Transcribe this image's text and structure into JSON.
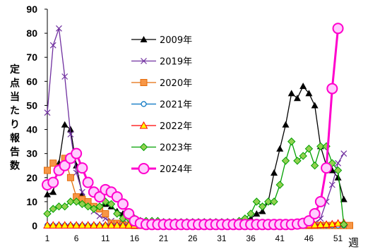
{
  "chart_data": {
    "type": "line",
    "ylabel": "定点当たり報告数",
    "xlabel": "週",
    "ylim": [
      0,
      90
    ],
    "xlim": [
      1,
      53
    ],
    "y_ticks": [
      "0",
      "10",
      "20",
      "30",
      "40",
      "50",
      "60",
      "70",
      "80",
      "90"
    ],
    "y_tick_values": [
      0,
      10,
      20,
      30,
      40,
      50,
      60,
      70,
      80,
      90
    ],
    "x_ticks": [
      "1",
      "6",
      "11",
      "16",
      "21",
      "26",
      "31",
      "36",
      "41",
      "46",
      "51"
    ],
    "x_tick_values": [
      1,
      6,
      11,
      16,
      21,
      26,
      31,
      36,
      41,
      46,
      51
    ],
    "grid": false,
    "legend_position": "center",
    "series": [
      {
        "name": "2009年",
        "color": "#000000",
        "marker": "triangle",
        "x": [
          1,
          2,
          3,
          4,
          5,
          6,
          7,
          8,
          9,
          10,
          11,
          12,
          13,
          14,
          15,
          16,
          17,
          18,
          19,
          20,
          21,
          22,
          23,
          24,
          25,
          26,
          27,
          28,
          29,
          30,
          31,
          32,
          33,
          34,
          35,
          36,
          37,
          38,
          39,
          40,
          41,
          42,
          43,
          44,
          45,
          46,
          47,
          48,
          49,
          50,
          51,
          52
        ],
        "values": [
          13,
          14,
          26,
          42,
          40,
          25,
          13,
          10,
          8,
          8,
          9,
          8,
          6,
          5,
          4,
          3,
          2,
          2,
          1,
          1,
          1,
          1,
          1,
          1,
          1,
          1,
          1,
          1,
          1,
          1,
          1,
          1,
          1,
          1,
          1,
          3,
          5,
          6,
          10,
          22,
          32,
          42,
          55,
          53,
          58,
          55,
          50,
          33,
          25,
          23,
          20,
          11
        ]
      },
      {
        "name": "2019年",
        "color": "#7030a0",
        "marker": "x",
        "x": [
          1,
          2,
          3,
          4,
          5,
          6,
          7,
          8,
          9,
          10,
          11,
          12,
          13,
          14,
          15,
          16,
          17,
          18,
          19,
          20,
          21,
          22,
          23,
          24,
          25,
          26,
          27,
          28,
          29,
          30,
          31,
          32,
          33,
          34,
          35,
          36,
          37,
          38,
          39,
          40,
          41,
          42,
          43,
          44,
          45,
          46,
          47,
          48,
          49,
          50,
          51,
          52
        ],
        "values": [
          47,
          75,
          82,
          62,
          38,
          22,
          14,
          9,
          6,
          4,
          3,
          2,
          1,
          1,
          0.5,
          0.5,
          0.3,
          0.3,
          0.2,
          0.2,
          0.2,
          0.2,
          0.2,
          0.2,
          0.2,
          0.2,
          0.2,
          0.2,
          0.2,
          0.2,
          0.2,
          0.2,
          0.2,
          0.2,
          0.2,
          0.2,
          0.2,
          0.2,
          0.2,
          0.2,
          0.2,
          0.2,
          0.2,
          0.3,
          0.3,
          0.5,
          1,
          3,
          10,
          17,
          26,
          30
        ]
      },
      {
        "name": "2020年",
        "color": "#e46c0a",
        "marker": "square",
        "x": [
          1,
          2,
          3,
          4,
          5,
          6,
          7,
          8,
          9,
          10,
          11,
          12,
          13,
          14,
          15,
          16,
          17,
          18,
          19,
          20,
          21,
          22,
          23,
          24,
          25,
          26,
          27,
          28,
          29,
          30,
          31,
          32,
          33,
          34,
          35,
          36,
          37,
          38,
          39,
          40,
          41,
          42,
          43,
          44,
          45,
          46,
          47,
          48,
          49,
          50,
          51,
          52,
          53
        ],
        "values": [
          23,
          26,
          24,
          28,
          20,
          12,
          11,
          10,
          8,
          7,
          5,
          1,
          1,
          0.3,
          0.2,
          0.1,
          0.1,
          0.1,
          0.1,
          0.1,
          0.1,
          0.1,
          0.1,
          0.1,
          0.1,
          0.1,
          0.1,
          0.1,
          0.1,
          0.1,
          0.1,
          0.1,
          0.1,
          0.1,
          0.1,
          0.1,
          0.1,
          0.1,
          0.1,
          0.1,
          0.1,
          0.1,
          0.1,
          0.1,
          0.1,
          0.1,
          0.1,
          0.1,
          0.1,
          0.1,
          0.1,
          0.1,
          0.1
        ]
      },
      {
        "name": "2021年",
        "color": "#0070c0",
        "marker": "circle",
        "x": [
          1,
          2,
          3,
          4,
          5,
          6,
          7,
          8,
          9,
          10,
          11,
          12,
          13,
          14,
          15,
          16,
          17,
          18,
          19,
          20,
          21,
          22,
          23,
          24,
          25,
          26,
          27,
          28,
          29,
          30,
          31,
          32,
          33,
          34,
          35,
          36,
          37,
          38,
          39,
          40,
          41,
          42,
          43,
          44,
          45,
          46,
          47,
          48,
          49,
          50,
          51,
          52
        ],
        "values": [
          0.1,
          0.1,
          0.1,
          0.1,
          0.1,
          0.1,
          0.1,
          0.1,
          0.1,
          0.1,
          0.1,
          0.1,
          0.1,
          0.1,
          0.1,
          0.1,
          0.1,
          0.1,
          0.1,
          0.1,
          0.1,
          0.1,
          0.1,
          0.1,
          0.1,
          0.1,
          0.1,
          0.1,
          0.1,
          0.1,
          0.1,
          0.1,
          0.1,
          0.1,
          0.1,
          0.1,
          0.1,
          0.1,
          0.1,
          0.1,
          0.1,
          0.1,
          0.1,
          0.1,
          0.1,
          0.1,
          0.1,
          0.1,
          0.1,
          0.1,
          0.1,
          0.1
        ]
      },
      {
        "name": "2022年",
        "color": "#ff0000",
        "marker": "triangle-yellow",
        "x": [
          1,
          2,
          3,
          4,
          5,
          6,
          7,
          8,
          9,
          10,
          11,
          12,
          13,
          14,
          15,
          16,
          17,
          18,
          19,
          20,
          21,
          22,
          23,
          24,
          25,
          26,
          27,
          28,
          29,
          30,
          31,
          32,
          33,
          34,
          35,
          36,
          37,
          38,
          39,
          40,
          41,
          42,
          43,
          44,
          45,
          46,
          47,
          48,
          49,
          50,
          51,
          52
        ],
        "values": [
          0.2,
          0.2,
          0.2,
          0.2,
          0.2,
          0.2,
          0.2,
          0.2,
          0.2,
          0.2,
          0.2,
          0.2,
          0.2,
          0.2,
          0.2,
          0.2,
          0.2,
          0.2,
          0.2,
          0.2,
          0.2,
          0.2,
          0.2,
          0.2,
          0.2,
          0.2,
          0.2,
          0.2,
          0.2,
          0.2,
          0.2,
          0.2,
          0.2,
          0.2,
          0.2,
          0.2,
          0.2,
          0.2,
          0.2,
          0.2,
          0.2,
          0.2,
          0.2,
          0.3,
          0.3,
          0.3,
          0.3,
          0.4,
          0.5,
          0.7,
          1,
          1.2
        ]
      },
      {
        "name": "2023年",
        "color": "#00a000",
        "marker": "diamond",
        "x": [
          1,
          2,
          3,
          4,
          5,
          6,
          7,
          8,
          9,
          10,
          11,
          12,
          13,
          14,
          15,
          16,
          17,
          18,
          19,
          20,
          21,
          22,
          23,
          24,
          25,
          26,
          27,
          28,
          29,
          30,
          31,
          32,
          33,
          34,
          35,
          36,
          37,
          38,
          39,
          40,
          41,
          42,
          43,
          44,
          45,
          46,
          47,
          48,
          49,
          50,
          51,
          52
        ],
        "values": [
          5,
          7,
          8,
          8,
          10,
          10,
          9,
          8,
          7,
          8,
          10,
          9,
          5,
          3,
          3,
          3,
          2,
          2,
          2,
          2,
          1.5,
          1.5,
          1.5,
          1.5,
          1.5,
          1.5,
          1.5,
          1.5,
          1.5,
          1.5,
          1.5,
          1.5,
          1.5,
          2,
          3,
          5,
          10,
          8,
          10,
          10,
          17,
          27,
          35,
          27,
          29,
          32,
          25,
          33,
          33,
          26,
          23,
          0.5
        ]
      },
      {
        "name": "2024年",
        "color": "#ff00cc",
        "marker": "circle-large",
        "x": [
          1,
          2,
          3,
          4,
          5,
          6,
          7,
          8,
          9,
          10,
          11,
          12,
          13,
          14,
          15,
          16,
          17,
          18,
          19,
          20,
          21,
          22,
          23,
          24,
          25,
          26,
          27,
          28,
          29,
          30,
          31,
          32,
          33,
          34,
          35,
          36,
          37,
          38,
          39,
          40,
          41,
          42,
          43,
          44,
          45,
          46,
          47,
          48,
          49,
          50,
          51,
          52
        ],
        "values": [
          17,
          18,
          23,
          25,
          28,
          30,
          24,
          18,
          14,
          12,
          15,
          14,
          12,
          9,
          5,
          2,
          1,
          0.5,
          0.5,
          0.5,
          0.5,
          0.5,
          0.5,
          0.5,
          0.5,
          0.5,
          0.5,
          0.5,
          0.5,
          0.5,
          0.5,
          0.5,
          0.5,
          0.5,
          0.5,
          0.5,
          0.5,
          0.5,
          0.5,
          0.5,
          0.5,
          0.5,
          0.5,
          0.7,
          1,
          2,
          5,
          10,
          24,
          57,
          82,
          null
        ]
      }
    ]
  }
}
